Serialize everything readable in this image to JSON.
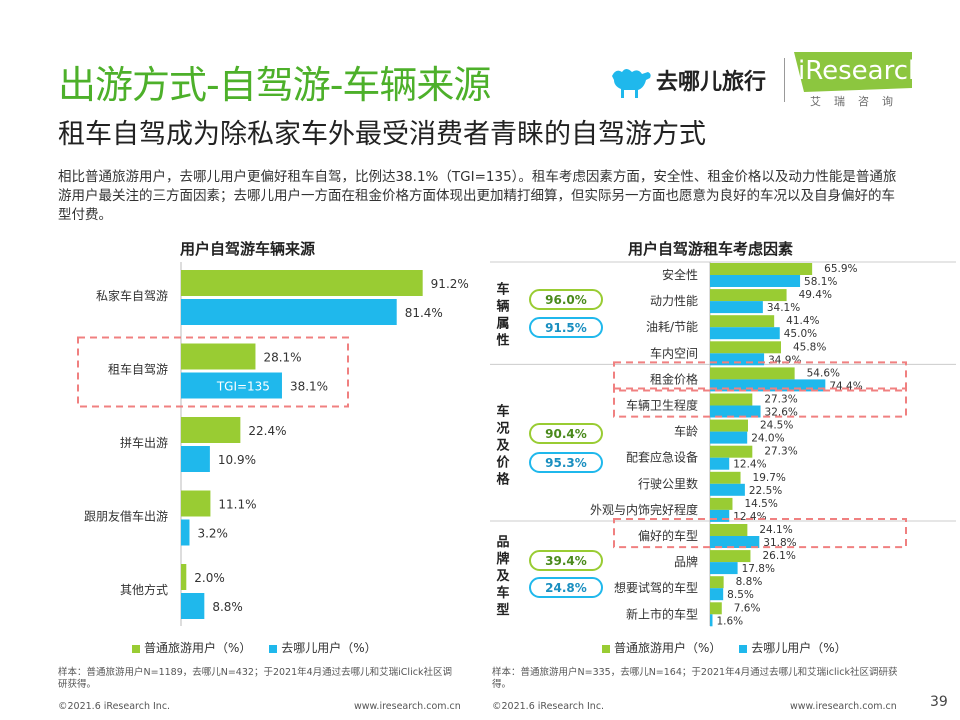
{
  "title": "出游方式-自驾游-车辆来源",
  "subtitle": "租车自驾成为除私家车外最受消费者青睐的自驾游方式",
  "description": "相比普通旅游用户，去哪儿用户更偏好租车自驾，比例达38.1%（TGI=135）。租车考虑因素方面，安全性、租金价格以及动力性能是普通旅游用户最关注的三方面因素；去哪儿用户一方面在租金价格方面体现出更加精打细算，但实际另一方面也愿意为良好的车况以及自身偏好的车型付费。",
  "logo": {
    "qunar_text": "去哪儿旅行",
    "iresearch_text": "iResearch",
    "iresearch_sub": "艾瑞咨询"
  },
  "colors": {
    "green": "#99cc33",
    "blue": "#1fb8ec",
    "title_green": "#4db02a",
    "highlight_red": "#f08080"
  },
  "legend": {
    "series1": "普通旅游用户（%）",
    "series2": "去哪儿用户（%）"
  },
  "chart_data": [
    {
      "type": "bar",
      "orientation": "horizontal",
      "title": "用户自驾游车辆来源",
      "categories": [
        "私家车自驾游",
        "租车自驾游",
        "拼车出游",
        "跟朋友借车出游",
        "其他方式"
      ],
      "series": [
        {
          "name": "普通旅游用户（%）",
          "values": [
            91.2,
            28.1,
            22.4,
            11.1,
            2.0
          ],
          "labels": [
            "91.2%",
            "28.1%",
            "22.4%",
            "11.1%",
            "2.0%"
          ]
        },
        {
          "name": "去哪儿用户（%）",
          "values": [
            81.4,
            38.1,
            10.9,
            3.2,
            8.8
          ],
          "labels": [
            "81.4%",
            "38.1%",
            "10.9%",
            "3.2%",
            "8.8%"
          ]
        }
      ],
      "xlim": [
        0,
        100
      ],
      "annotation": "TGI=135",
      "highlight_category": "租车自驾游"
    },
    {
      "type": "bar",
      "orientation": "horizontal",
      "title": "用户自驾游租车考虑因素",
      "categories": [
        "安全性",
        "动力性能",
        "油耗/节能",
        "车内空间",
        "租金价格",
        "车辆卫生程度",
        "车龄",
        "配套应急设备",
        "行驶公里数",
        "外观与内饰完好程度",
        "偏好的车型",
        "品牌",
        "想要试驾的车型",
        "新上市的车型"
      ],
      "series": [
        {
          "name": "普通旅游用户（%）",
          "values": [
            65.9,
            49.4,
            41.4,
            45.8,
            54.6,
            27.3,
            24.5,
            27.3,
            19.7,
            14.5,
            24.1,
            26.1,
            8.8,
            7.6
          ],
          "labels": [
            "65.9%",
            "49.4%",
            "41.4%",
            "45.8%",
            "54.6%",
            "27.3%",
            "24.5%",
            "27.3%",
            "19.7%",
            "14.5%",
            "24.1%",
            "26.1%",
            "8.8%",
            "7.6%"
          ]
        },
        {
          "name": "去哪儿用户（%）",
          "values": [
            58.1,
            34.1,
            45.0,
            34.9,
            74.4,
            32.6,
            24.0,
            12.4,
            22.5,
            12.4,
            31.8,
            17.8,
            8.5,
            1.6
          ],
          "labels": [
            "58.1%",
            "34.1%",
            "45.0%",
            "34.9%",
            "74.4%",
            "32.6%",
            "24.0%",
            "12.4%",
            "22.5%",
            "12.4%",
            "31.8%",
            "17.8%",
            "8.5%",
            "1.6%"
          ]
        }
      ],
      "xlim": [
        0,
        100
      ],
      "highlight_categories": [
        "租金价格",
        "车辆卫生程度",
        "偏好的车型"
      ],
      "groups": [
        {
          "label": "车辆属性",
          "pill1": "96.0%",
          "pill2": "91.5%"
        },
        {
          "label": "车况及价格",
          "pill1": "90.4%",
          "pill2": "95.3%"
        },
        {
          "label": "品牌及车型",
          "pill1": "39.4%",
          "pill2": "24.8%"
        }
      ]
    }
  ],
  "footnotes": {
    "left": "样本：普通旅游用户N=1189，去哪儿N=432；于2021年4月通过去哪儿和艾瑞iClick社区调研获得。",
    "right": "样本：普通旅游用户N=335，去哪儿N=164；于2021年4月通过去哪儿和艾瑞iclick社区调研获得。"
  },
  "footer": {
    "copyright": "©2021.6 iResearch Inc.",
    "url": "www.iresearch.com.cn",
    "page": "39"
  }
}
